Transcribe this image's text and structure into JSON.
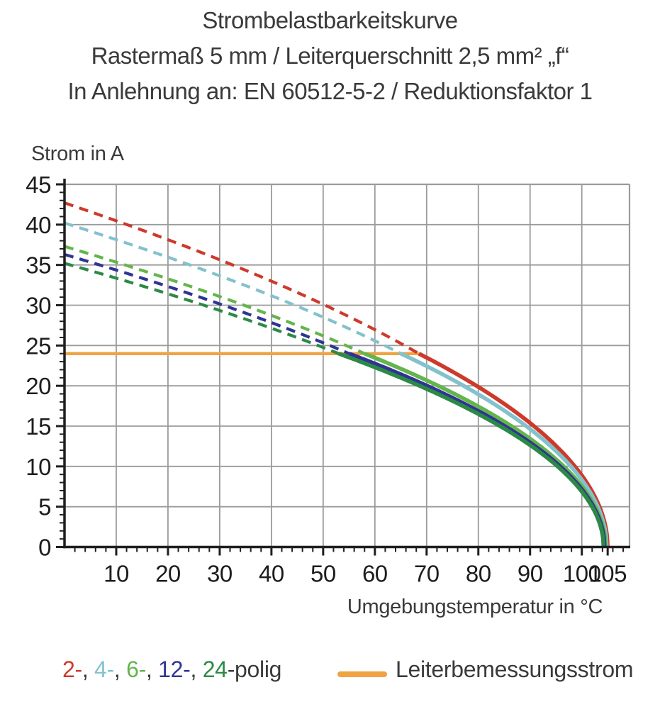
{
  "chart_data": {
    "type": "line",
    "title_lines": {
      "line1": "Strombelastbarkeitskurve",
      "line2": "Rastermaß 5 mm / Leiterquerschnitt 2,5 mm² „f“",
      "line3": "In Anlehnung an: EN 60512-5-2 / Reduktionsfaktor 1"
    },
    "xlabel": "Umgebungstemperatur in °C",
    "ylabel": "Strom in A",
    "xlim": [
      0,
      109
    ],
    "ylim": [
      0,
      45
    ],
    "x_major_ticks": [
      10,
      20,
      30,
      40,
      50,
      60,
      70,
      80,
      90,
      100,
      105
    ],
    "x_minor_step": 2,
    "y_major_ticks": [
      0,
      5,
      10,
      15,
      20,
      25,
      30,
      35,
      40,
      45
    ],
    "y_minor_step": 1,
    "grid": {
      "on": true,
      "x_step": 10,
      "y_step": 5,
      "color": "#9b9b9b"
    },
    "colors": {
      "red": "#cd3a2b",
      "cyan": "#83c2cc",
      "green": "#64b54c",
      "navy": "#2f3494",
      "dgreen": "#2c8a46",
      "dark": "#3a3a3c",
      "orange": "#f0a342",
      "axis": "#1f1f21",
      "grid": "#9b9b9b"
    },
    "rating_line": {
      "label": "Leiterbemessungsstrom",
      "value_a": 24,
      "x_start_c": 0,
      "x_end_c": 68.5,
      "color_key": "orange"
    },
    "series": [
      {
        "name": "2-polig",
        "color_key": "red",
        "start_a_at_0c": 42.7,
        "cross_temp_c": 68.5,
        "zero_temp_c": 105,
        "points_dashed": [
          [
            0,
            42.7
          ],
          [
            10,
            40.5
          ],
          [
            20,
            38.1
          ],
          [
            30,
            35.6
          ],
          [
            40,
            33.0
          ],
          [
            50,
            30.1
          ],
          [
            60,
            27.0
          ],
          [
            68.5,
            24.0
          ]
        ],
        "points_solid": [
          [
            68.5,
            24.0
          ],
          [
            75,
            21.8
          ],
          [
            80,
            19.9
          ],
          [
            85,
            17.8
          ],
          [
            90,
            15.4
          ],
          [
            95,
            12.6
          ],
          [
            100,
            8.9
          ],
          [
            103,
            5.6
          ],
          [
            105,
            0
          ]
        ]
      },
      {
        "name": "4-polig",
        "color_key": "cyan",
        "start_a_at_0c": 40.2,
        "cross_temp_c": 65,
        "zero_temp_c": 104.8,
        "points_dashed": [
          [
            0,
            40.2
          ],
          [
            10,
            38.1
          ],
          [
            20,
            36.0
          ],
          [
            30,
            33.7
          ],
          [
            40,
            31.2
          ],
          [
            50,
            28.5
          ],
          [
            60,
            25.6
          ],
          [
            65,
            24.0
          ]
        ],
        "points_solid": [
          [
            65,
            24.0
          ],
          [
            70,
            22.4
          ],
          [
            75,
            20.8
          ],
          [
            80,
            19.0
          ],
          [
            85,
            16.9
          ],
          [
            90,
            14.6
          ],
          [
            95,
            11.9
          ],
          [
            100,
            8.3
          ],
          [
            103,
            5.1
          ],
          [
            104.8,
            0
          ]
        ]
      },
      {
        "name": "6-polig",
        "color_key": "green",
        "start_a_at_0c": 37.3,
        "cross_temp_c": 58,
        "zero_temp_c": 104.6,
        "points_dashed": [
          [
            0,
            37.3
          ],
          [
            10,
            35.3
          ],
          [
            20,
            33.3
          ],
          [
            30,
            31.1
          ],
          [
            40,
            28.7
          ],
          [
            50,
            26.2
          ],
          [
            58,
            24.0
          ]
        ],
        "points_solid": [
          [
            58,
            24.0
          ],
          [
            65,
            22.1
          ],
          [
            70,
            20.7
          ],
          [
            75,
            19.1
          ],
          [
            80,
            17.4
          ],
          [
            85,
            15.6
          ],
          [
            90,
            13.4
          ],
          [
            95,
            10.9
          ],
          [
            100,
            7.5
          ],
          [
            103,
            4.5
          ],
          [
            104.6,
            0
          ]
        ]
      },
      {
        "name": "12-polig",
        "color_key": "navy",
        "start_a_at_0c": 36.3,
        "cross_temp_c": 55,
        "zero_temp_c": 104.4,
        "points_dashed": [
          [
            0,
            36.3
          ],
          [
            10,
            34.4
          ],
          [
            20,
            32.3
          ],
          [
            30,
            30.2
          ],
          [
            40,
            27.8
          ],
          [
            50,
            25.3
          ],
          [
            55,
            24.0
          ]
        ],
        "points_solid": [
          [
            55,
            24.0
          ],
          [
            60,
            22.8
          ],
          [
            65,
            21.4
          ],
          [
            70,
            20.0
          ],
          [
            75,
            18.5
          ],
          [
            80,
            16.9
          ],
          [
            85,
            15.0
          ],
          [
            90,
            13.0
          ],
          [
            95,
            10.5
          ],
          [
            100,
            7.2
          ],
          [
            103,
            4.0
          ],
          [
            104.4,
            0
          ]
        ]
      },
      {
        "name": "24-polig",
        "color_key": "dgreen",
        "start_a_at_0c": 35.2,
        "cross_temp_c": 53,
        "zero_temp_c": 104.2,
        "points_dashed": [
          [
            0,
            35.2
          ],
          [
            10,
            33.4
          ],
          [
            20,
            31.4
          ],
          [
            30,
            29.4
          ],
          [
            40,
            27.2
          ],
          [
            50,
            24.8
          ],
          [
            53,
            24.0
          ]
        ],
        "points_solid": [
          [
            53,
            24.0
          ],
          [
            60,
            22.3
          ],
          [
            65,
            21.0
          ],
          [
            70,
            19.6
          ],
          [
            75,
            18.1
          ],
          [
            80,
            16.5
          ],
          [
            85,
            14.7
          ],
          [
            90,
            12.6
          ],
          [
            95,
            10.2
          ],
          [
            100,
            6.9
          ],
          [
            103,
            3.7
          ],
          [
            104.2,
            0
          ]
        ]
      }
    ],
    "legend": {
      "series_label_parts": [
        {
          "text": "2-",
          "color_key": "red"
        },
        {
          "text": ", ",
          "color_key": "dark"
        },
        {
          "text": "4-",
          "color_key": "cyan"
        },
        {
          "text": ", ",
          "color_key": "dark"
        },
        {
          "text": "6-",
          "color_key": "green"
        },
        {
          "text": ", ",
          "color_key": "dark"
        },
        {
          "text": "12-",
          "color_key": "navy"
        },
        {
          "text": ", ",
          "color_key": "dark"
        },
        {
          "text": "24",
          "color_key": "dgreen"
        },
        {
          "text": "-polig",
          "color_key": "dark"
        }
      ]
    }
  }
}
